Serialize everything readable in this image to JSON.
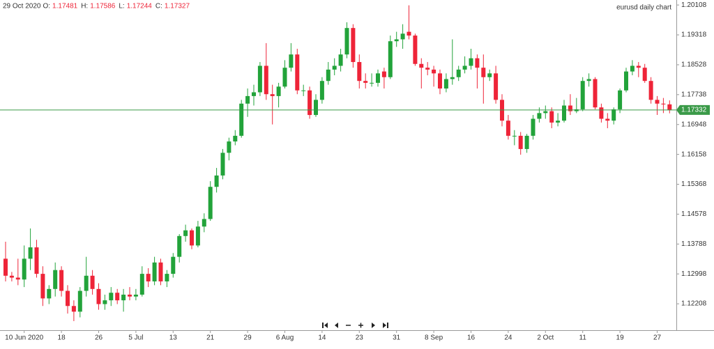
{
  "header": {
    "date": "29 Oct 2020",
    "fields": [
      {
        "label": "O:",
        "value": "1.17481"
      },
      {
        "label": "H:",
        "value": "1.17586"
      },
      {
        "label": "L:",
        "value": "1.17244"
      },
      {
        "label": "C:",
        "value": "1.17327"
      }
    ]
  },
  "chart_data": {
    "type": "candlestick",
    "title": "eurusd daily chart",
    "up_color": "#22a33a",
    "down_color": "#ee2438",
    "last_price": 1.17332,
    "last_price_color": "#3a9a48",
    "ylim": [
      1.1151,
      1.2024
    ],
    "yticks": [
      1.12208,
      1.12998,
      1.13788,
      1.14578,
      1.15368,
      1.16158,
      1.16948,
      1.17738,
      1.18528,
      1.19318,
      1.20108
    ],
    "categories": [
      null,
      null,
      null,
      "10 Jun 2020",
      null,
      null,
      null,
      null,
      null,
      "18",
      null,
      null,
      null,
      null,
      null,
      "26",
      null,
      null,
      null,
      null,
      null,
      "5 Jul",
      null,
      null,
      null,
      null,
      null,
      "13",
      null,
      null,
      null,
      null,
      null,
      "21",
      null,
      null,
      null,
      null,
      null,
      "29",
      null,
      null,
      null,
      null,
      null,
      "6 Aug",
      null,
      null,
      null,
      null,
      null,
      "14",
      null,
      null,
      null,
      null,
      null,
      "23",
      null,
      null,
      null,
      null,
      null,
      "31",
      null,
      null,
      null,
      null,
      null,
      "8 Sep",
      null,
      null,
      null,
      null,
      null,
      "16",
      null,
      null,
      null,
      null,
      null,
      "24",
      null,
      null,
      null,
      null,
      null,
      "2 Oct",
      null,
      null,
      null,
      null,
      null,
      "11",
      null,
      null,
      null,
      null,
      null,
      "19",
      null,
      null,
      null,
      null,
      null,
      "27",
      null,
      null
    ],
    "candles": [
      [
        1.134,
        1.1385,
        1.128,
        1.1295
      ],
      [
        1.1295,
        1.1305,
        1.128,
        1.129
      ],
      [
        1.129,
        1.134,
        1.127,
        1.1285
      ],
      [
        1.1285,
        1.1375,
        1.1265,
        1.134
      ],
      [
        1.134,
        1.142,
        1.131,
        1.137
      ],
      [
        1.137,
        1.139,
        1.129,
        1.13
      ],
      [
        1.13,
        1.132,
        1.1215,
        1.1235
      ],
      [
        1.1235,
        1.127,
        1.122,
        1.126
      ],
      [
        1.126,
        1.133,
        1.124,
        1.131
      ],
      [
        1.131,
        1.132,
        1.124,
        1.1255
      ],
      [
        1.1255,
        1.127,
        1.1195,
        1.1215
      ],
      [
        1.1215,
        1.123,
        1.1175,
        1.12
      ],
      [
        1.12,
        1.1265,
        1.1185,
        1.1255
      ],
      [
        1.1255,
        1.1345,
        1.124,
        1.1295
      ],
      [
        1.1295,
        1.131,
        1.1245,
        1.126
      ],
      [
        1.126,
        1.1275,
        1.1205,
        1.122
      ],
      [
        1.122,
        1.1245,
        1.1205,
        1.123
      ],
      [
        1.123,
        1.1265,
        1.1215,
        1.125
      ],
      [
        1.125,
        1.126,
        1.122,
        1.123
      ],
      [
        1.123,
        1.126,
        1.12,
        1.1245
      ],
      [
        1.1245,
        1.1265,
        1.123,
        1.124
      ],
      [
        1.124,
        1.126,
        1.123,
        1.1245
      ],
      [
        1.1245,
        1.132,
        1.124,
        1.13
      ],
      [
        1.13,
        1.1315,
        1.1265,
        1.128
      ],
      [
        1.128,
        1.1345,
        1.127,
        1.133
      ],
      [
        1.133,
        1.134,
        1.127,
        1.128
      ],
      [
        1.128,
        1.131,
        1.1265,
        1.13
      ],
      [
        1.13,
        1.1355,
        1.129,
        1.1345
      ],
      [
        1.1345,
        1.1405,
        1.133,
        1.14
      ],
      [
        1.14,
        1.143,
        1.1385,
        1.1415
      ],
      [
        1.1415,
        1.142,
        1.1365,
        1.1375
      ],
      [
        1.1375,
        1.144,
        1.137,
        1.1425
      ],
      [
        1.1425,
        1.146,
        1.141,
        1.1445
      ],
      [
        1.1445,
        1.1545,
        1.144,
        1.153
      ],
      [
        1.153,
        1.158,
        1.1515,
        1.156
      ],
      [
        1.156,
        1.163,
        1.155,
        1.162
      ],
      [
        1.162,
        1.166,
        1.16,
        1.165
      ],
      [
        1.165,
        1.168,
        1.164,
        1.1665
      ],
      [
        1.1665,
        1.176,
        1.166,
        1.175
      ],
      [
        1.175,
        1.179,
        1.1715,
        1.177
      ],
      [
        1.177,
        1.18,
        1.1745,
        1.178
      ],
      [
        1.178,
        1.186,
        1.177,
        1.185
      ],
      [
        1.185,
        1.191,
        1.176,
        1.1775
      ],
      [
        1.1775,
        1.18,
        1.1695,
        1.177
      ],
      [
        1.177,
        1.1805,
        1.174,
        1.1795
      ],
      [
        1.1795,
        1.1865,
        1.179,
        1.1845
      ],
      [
        1.1845,
        1.191,
        1.1835,
        1.188
      ],
      [
        1.188,
        1.1895,
        1.1775,
        1.1785
      ],
      [
        1.1785,
        1.18,
        1.177,
        1.1785
      ],
      [
        1.1785,
        1.1795,
        1.171,
        1.172
      ],
      [
        1.172,
        1.1775,
        1.1715,
        1.176
      ],
      [
        1.176,
        1.182,
        1.175,
        1.181
      ],
      [
        1.181,
        1.186,
        1.18,
        1.184
      ],
      [
        1.184,
        1.187,
        1.1825,
        1.185
      ],
      [
        1.185,
        1.1895,
        1.1835,
        1.188
      ],
      [
        1.188,
        1.1965,
        1.187,
        1.195
      ],
      [
        1.195,
        1.196,
        1.1845,
        1.186
      ],
      [
        1.186,
        1.188,
        1.179,
        1.181
      ],
      [
        1.181,
        1.183,
        1.179,
        1.1805
      ],
      [
        1.1805,
        1.183,
        1.1795,
        1.1805
      ],
      [
        1.1805,
        1.184,
        1.1795,
        1.183
      ],
      [
        1.1835,
        1.1845,
        1.179,
        1.182
      ],
      [
        1.182,
        1.193,
        1.1815,
        1.1915
      ],
      [
        1.1915,
        1.194,
        1.19,
        1.192
      ],
      [
        1.192,
        1.196,
        1.1895,
        1.1935
      ],
      [
        1.194,
        1.201,
        1.192,
        1.193
      ],
      [
        1.193,
        1.1935,
        1.185,
        1.1855
      ],
      [
        1.1855,
        1.187,
        1.179,
        1.1845
      ],
      [
        1.1845,
        1.186,
        1.1825,
        1.184
      ],
      [
        1.184,
        1.185,
        1.1795,
        1.183
      ],
      [
        1.183,
        1.184,
        1.1775,
        1.179
      ],
      [
        1.179,
        1.183,
        1.178,
        1.1815
      ],
      [
        1.1815,
        1.192,
        1.18,
        1.182
      ],
      [
        1.182,
        1.185,
        1.181,
        1.184
      ],
      [
        1.184,
        1.1875,
        1.183,
        1.185
      ],
      [
        1.185,
        1.1895,
        1.184,
        1.187
      ],
      [
        1.187,
        1.188,
        1.179,
        1.1845
      ],
      [
        1.1845,
        1.188,
        1.175,
        1.182
      ],
      [
        1.182,
        1.184,
        1.181,
        1.183
      ],
      [
        1.183,
        1.185,
        1.175,
        1.176
      ],
      [
        1.176,
        1.1775,
        1.169,
        1.1705
      ],
      [
        1.1705,
        1.172,
        1.1655,
        1.1665
      ],
      [
        1.1665,
        1.168,
        1.164,
        1.1665
      ],
      [
        1.1665,
        1.1675,
        1.1615,
        1.163
      ],
      [
        1.163,
        1.167,
        1.162,
        1.1665
      ],
      [
        1.1665,
        1.172,
        1.1655,
        1.171
      ],
      [
        1.171,
        1.174,
        1.17,
        1.1725
      ],
      [
        1.1725,
        1.1745,
        1.171,
        1.173
      ],
      [
        1.173,
        1.174,
        1.1685,
        1.17
      ],
      [
        1.17,
        1.1725,
        1.169,
        1.1705
      ],
      [
        1.1705,
        1.176,
        1.17,
        1.1745
      ],
      [
        1.1745,
        1.1775,
        1.172,
        1.173
      ],
      [
        1.173,
        1.1765,
        1.1725,
        1.1735
      ],
      [
        1.1735,
        1.182,
        1.173,
        1.181
      ],
      [
        1.181,
        1.183,
        1.1795,
        1.1815
      ],
      [
        1.1815,
        1.182,
        1.1735,
        1.174
      ],
      [
        1.174,
        1.175,
        1.17,
        1.171
      ],
      [
        1.171,
        1.1725,
        1.1685,
        1.1705
      ],
      [
        1.1705,
        1.174,
        1.1695,
        1.1735
      ],
      [
        1.1735,
        1.179,
        1.1725,
        1.1785
      ],
      [
        1.1785,
        1.1845,
        1.178,
        1.1835
      ],
      [
        1.1835,
        1.1865,
        1.1825,
        1.185
      ],
      [
        1.185,
        1.186,
        1.182,
        1.1845
      ],
      [
        1.1845,
        1.1855,
        1.1805,
        1.181
      ],
      [
        1.181,
        1.182,
        1.175,
        1.176
      ],
      [
        1.176,
        1.177,
        1.172,
        1.175
      ],
      [
        1.175,
        1.1765,
        1.1725,
        1.1748
      ],
      [
        1.17481,
        1.17586,
        1.17244,
        1.17327
      ]
    ]
  }
}
